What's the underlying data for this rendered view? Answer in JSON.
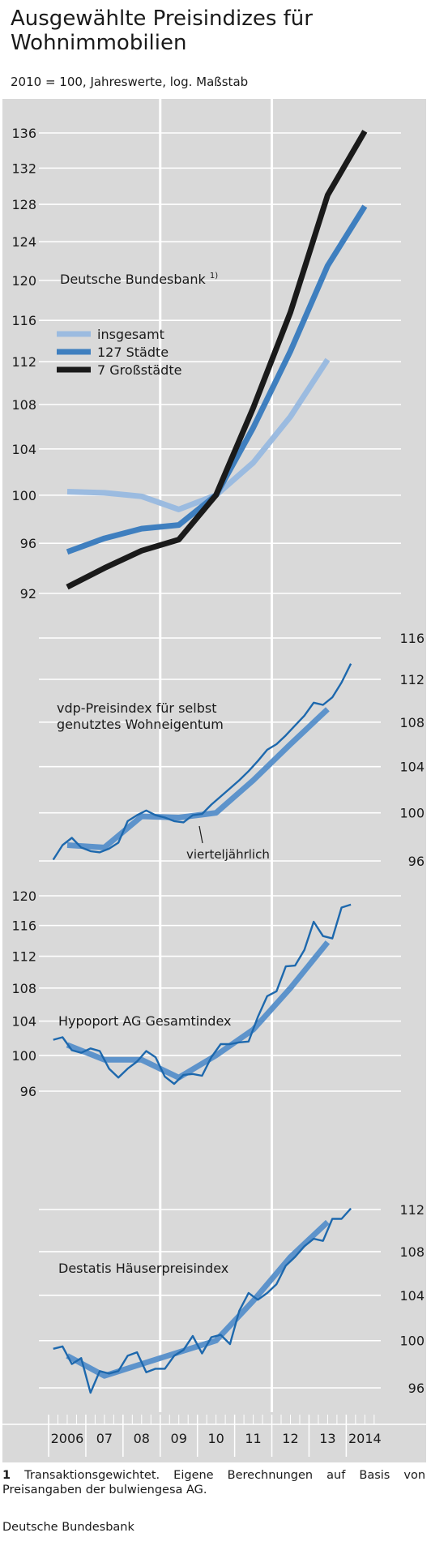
{
  "header": {
    "title_line1": "Ausgewählte Preisindizes für",
    "title_line2": "Wohnimmobilien",
    "subtitle": "2010 = 100, Jahreswerte, log. Maßstab"
  },
  "footnote": {
    "number": "1",
    "text": "Transaktionsgewichtet. Eigene Berechnungen auf Basis von Preisangaben der bulwiengesa AG."
  },
  "source": "Deutsche Bundesbank",
  "colors": {
    "panel_bg": "#d9d9d9",
    "insgesamt": "#9bbbe0",
    "staedte127": "#3f7fbf",
    "grossstaedte7": "#1a1a1a",
    "quarterly": "#1d68ad",
    "annual": "#5d93cb"
  },
  "chart_data": [
    {
      "type": "line",
      "scale": "log",
      "label": "Deutsche Bundesbank",
      "label_note": "1)",
      "axis_side": "left",
      "ylim": [
        92,
        137
      ],
      "yticks": [
        92,
        96,
        100,
        104,
        108,
        112,
        116,
        120,
        124,
        128,
        132,
        136
      ],
      "legend": [
        "insgesamt",
        "127 Städte",
        "7 Großstädte"
      ],
      "series": [
        {
          "name": "insgesamt",
          "x": [
            2006,
            2007,
            2008,
            2009,
            2010,
            2011,
            2012,
            2013
          ],
          "values": [
            100.3,
            100.2,
            99.9,
            98.8,
            100.0,
            102.8,
            106.9,
            112.2
          ]
        },
        {
          "name": "127 Städte",
          "x": [
            2006,
            2007,
            2008,
            2009,
            2010,
            2011,
            2012,
            2013,
            2014
          ],
          "values": [
            95.3,
            96.4,
            97.2,
            97.5,
            100.0,
            105.9,
            113.0,
            121.5,
            127.8
          ]
        },
        {
          "name": "7 Großstädte",
          "x": [
            2006,
            2007,
            2008,
            2009,
            2010,
            2011,
            2012,
            2013,
            2014
          ],
          "values": [
            92.5,
            94.0,
            95.4,
            96.3,
            100.0,
            107.7,
            116.8,
            129.0,
            136.2
          ]
        }
      ]
    },
    {
      "type": "line",
      "scale": "log",
      "label_line1": "vdp-Preisindex für selbst",
      "label_line2": "genutztes Wohneigentum",
      "annotation": "vierteljährlich",
      "axis_side": "right",
      "ylim": [
        96,
        116
      ],
      "yticks": [
        96,
        100,
        104,
        108,
        112,
        116
      ],
      "quarterly": {
        "start": 2006,
        "values": [
          96.1,
          97.3,
          97.9,
          97.1,
          96.8,
          96.7,
          97.0,
          97.5,
          99.3,
          99.8,
          100.2,
          99.8,
          99.6,
          99.3,
          99.2,
          99.8,
          99.9,
          100.7,
          101.4,
          102.1,
          102.8,
          103.6,
          104.5,
          105.5,
          106.0,
          106.8,
          107.7,
          108.6,
          109.8,
          109.6,
          110.3,
          111.7,
          113.5
        ]
      },
      "annual": {
        "x": [
          2006,
          2007,
          2008,
          2009,
          2010,
          2011,
          2012,
          2013
        ],
        "values": [
          97.3,
          97.1,
          99.7,
          99.6,
          100.0,
          102.8,
          106.0,
          109.2
        ]
      }
    },
    {
      "type": "line",
      "scale": "log",
      "label": "Hypoport AG Gesamtindex",
      "axis_side": "left",
      "ylim": [
        95,
        121
      ],
      "yticks": [
        96,
        100,
        104,
        108,
        112,
        116,
        120
      ],
      "quarterly": {
        "start": 2006,
        "values": [
          101.8,
          102.1,
          100.6,
          100.3,
          100.8,
          100.5,
          98.5,
          97.5,
          98.5,
          99.3,
          100.5,
          99.8,
          97.6,
          96.8,
          97.8,
          97.9,
          97.7,
          99.8,
          101.3,
          101.3,
          101.5,
          101.6,
          104.5,
          107.0,
          107.6,
          110.7,
          110.8,
          112.8,
          116.5,
          114.6,
          114.3,
          118.4,
          118.8
        ]
      },
      "annual": {
        "x": [
          2006,
          2007,
          2008,
          2009,
          2010,
          2011,
          2012,
          2013
        ],
        "values": [
          101.2,
          99.5,
          99.5,
          97.5,
          100.0,
          103.0,
          108.0,
          113.8
        ]
      }
    },
    {
      "type": "line",
      "scale": "log",
      "label": "Destatis Häuserpreisindex",
      "axis_side": "right",
      "ylim": [
        95,
        113
      ],
      "yticks": [
        96,
        100,
        104,
        108,
        112
      ],
      "quarterly": {
        "start": 2006,
        "values": [
          99.3,
          99.5,
          98.0,
          98.5,
          95.6,
          97.4,
          97.2,
          97.4,
          98.7,
          99.0,
          97.3,
          97.6,
          97.6,
          98.7,
          99.2,
          100.4,
          98.9,
          100.3,
          100.5,
          99.7,
          102.6,
          104.2,
          103.6,
          104.2,
          105.0,
          106.7,
          107.5,
          108.5,
          109.2,
          109.0,
          111.1,
          111.1,
          112.1
        ]
      },
      "annual": {
        "x": [
          2006,
          2007,
          2008,
          2009,
          2010,
          2011,
          2012,
          2013
        ],
        "values": [
          98.7,
          97.0,
          98.0,
          99.0,
          100.0,
          103.5,
          107.5,
          110.8
        ]
      }
    }
  ],
  "x_axis": {
    "labels": [
      "2006",
      "07",
      "08",
      "09",
      "10",
      "11",
      "12",
      "13",
      "2014"
    ],
    "start": 2006,
    "end": 2014.95
  }
}
